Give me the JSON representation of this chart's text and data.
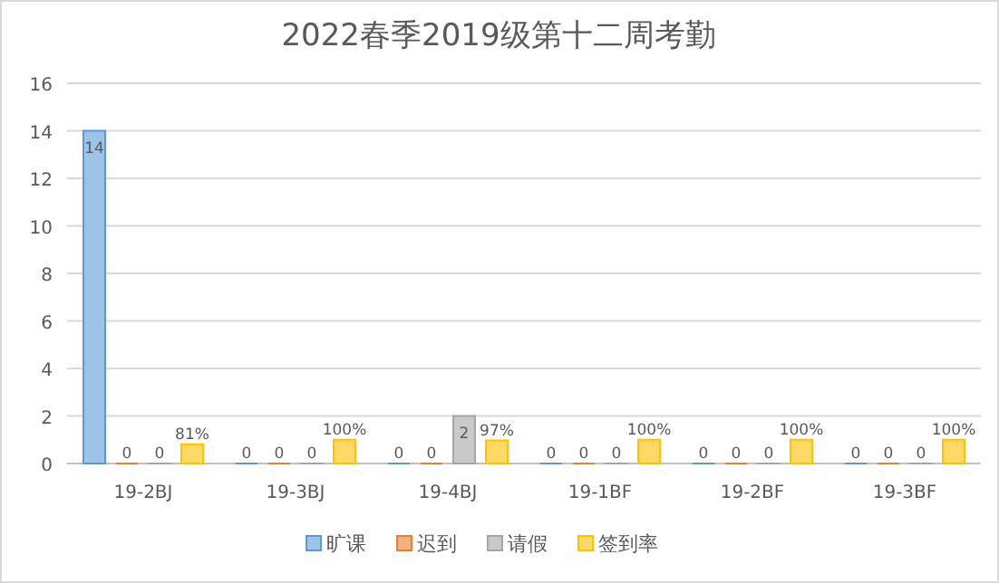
{
  "chart_data": {
    "type": "bar",
    "title": "2022春季2019级第十二周考勤",
    "categories": [
      "19-2BJ",
      "19-3BJ",
      "19-4BJ",
      "19-1BF",
      "19-2BF",
      "19-3BF"
    ],
    "ylim": [
      0,
      16
    ],
    "yticks": [
      0,
      2,
      4,
      6,
      8,
      10,
      12,
      14,
      16
    ],
    "grid": "y",
    "legend": "bottom",
    "series": [
      {
        "name": "旷课",
        "color": "#9dc3e6",
        "values": [
          14,
          0,
          0,
          0,
          0,
          0
        ],
        "value_labels": [
          "14",
          "0",
          "0",
          "0",
          "0",
          "0"
        ]
      },
      {
        "name": "迟到",
        "color": "#f4b183",
        "values": [
          0,
          0,
          0,
          0,
          0,
          0
        ],
        "value_labels": [
          "0",
          "0",
          "0",
          "0",
          "0",
          "0"
        ]
      },
      {
        "name": "请假",
        "color": "#c9c9c9",
        "values": [
          0,
          0,
          2,
          0,
          0,
          0
        ],
        "value_labels": [
          "0",
          "0",
          "2",
          "0",
          "0",
          "0"
        ]
      },
      {
        "name": "签到率",
        "color": "#ffd966",
        "values": [
          0.81,
          1,
          0.97,
          1,
          1,
          1
        ],
        "value_labels": [
          "81%",
          "100%",
          "97%",
          "100%",
          "100%",
          "100%"
        ]
      }
    ]
  }
}
